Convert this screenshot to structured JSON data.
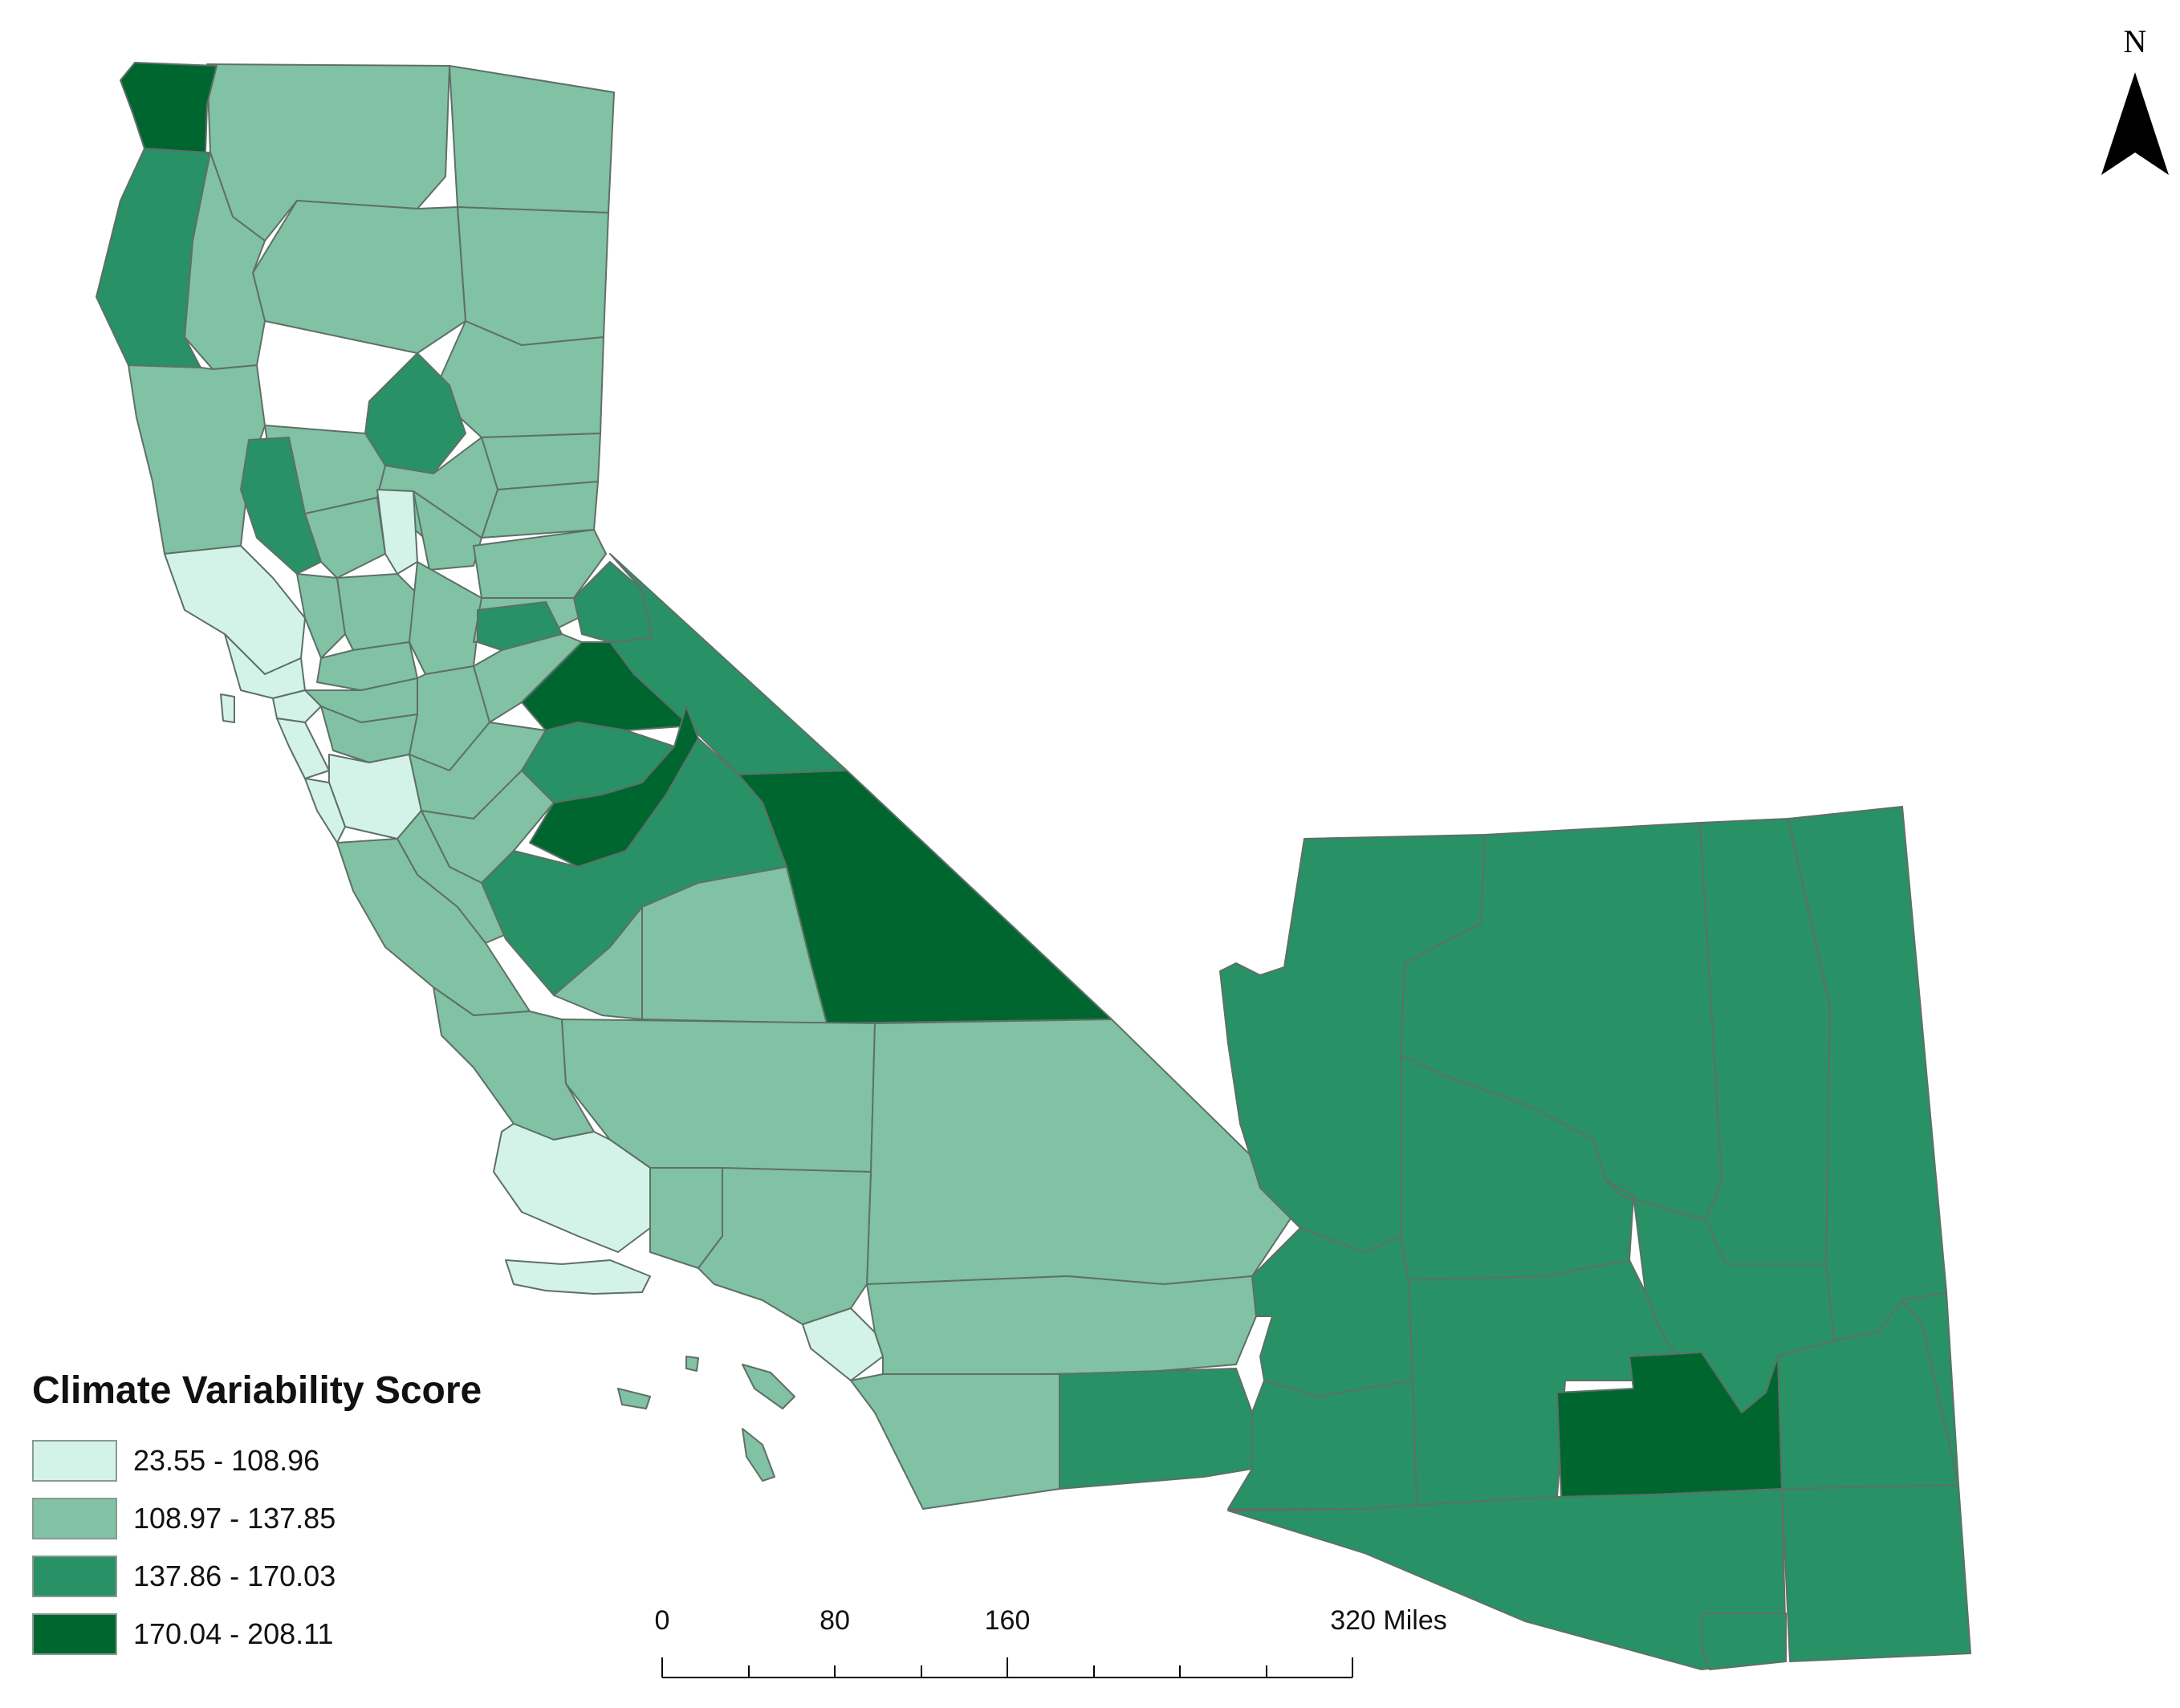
{
  "legend": {
    "title": "Climate Variability Score",
    "classes": [
      {
        "label": "23.55 - 108.96",
        "color": "#d3f3e8"
      },
      {
        "label": "108.97 - 137.85",
        "color": "#80c2a3"
      },
      {
        "label": "137.86 - 170.03",
        "color": "#289165"
      },
      {
        "label": "170.04 - 208.11",
        "color": "#00662f"
      }
    ]
  },
  "north_arrow": {
    "label": "N",
    "icon": "north-arrow-icon"
  },
  "scale_bar": {
    "labels": [
      "0",
      "80",
      "160",
      "320 Miles"
    ]
  }
}
